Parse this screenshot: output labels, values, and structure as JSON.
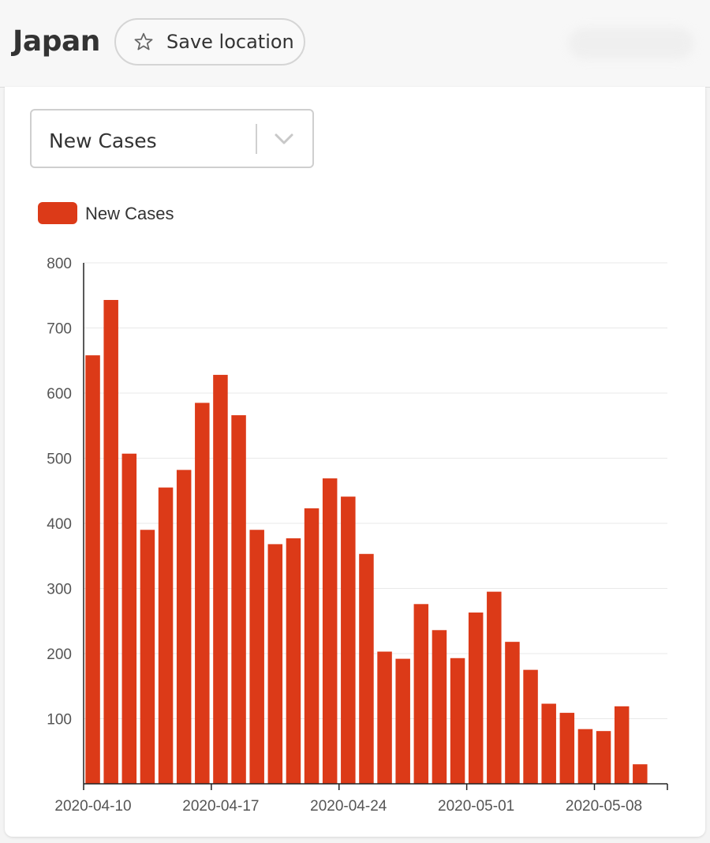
{
  "header": {
    "title": "Japan",
    "save_label": "Save location"
  },
  "metric_select": {
    "selected": "New Cases"
  },
  "colors": {
    "bar": "#dc3a18",
    "grid": "#e9e9e9",
    "axis": "#222222",
    "tick_text": "#555555"
  },
  "icons": [
    "star-icon",
    "chevron-down-icon"
  ],
  "chart_data": {
    "type": "bar",
    "legend": [
      "New Cases"
    ],
    "legend_position": "top-left",
    "grid": true,
    "ylim": [
      0,
      800
    ],
    "y_ticks": [
      100,
      200,
      300,
      400,
      500,
      600,
      700,
      800
    ],
    "x_tick_labels": [
      "2020-04-10",
      "2020-04-17",
      "2020-04-24",
      "2020-05-01",
      "2020-05-08"
    ],
    "series": [
      {
        "name": "New Cases",
        "x": [
          "2020-04-10",
          "2020-04-11",
          "2020-04-12",
          "2020-04-13",
          "2020-04-14",
          "2020-04-15",
          "2020-04-16",
          "2020-04-17",
          "2020-04-18",
          "2020-04-19",
          "2020-04-20",
          "2020-04-21",
          "2020-04-22",
          "2020-04-23",
          "2020-04-24",
          "2020-04-25",
          "2020-04-26",
          "2020-04-27",
          "2020-04-28",
          "2020-04-29",
          "2020-04-30",
          "2020-05-01",
          "2020-05-02",
          "2020-05-03",
          "2020-05-04",
          "2020-05-05",
          "2020-05-06",
          "2020-05-07",
          "2020-05-08",
          "2020-05-09",
          "2020-05-10",
          "2020-05-11"
        ],
        "values": [
          658,
          743,
          507,
          390,
          455,
          482,
          585,
          628,
          566,
          390,
          368,
          377,
          423,
          469,
          441,
          353,
          203,
          192,
          276,
          236,
          193,
          263,
          295,
          218,
          175,
          123,
          109,
          84,
          81,
          119,
          30,
          0
        ]
      }
    ]
  }
}
